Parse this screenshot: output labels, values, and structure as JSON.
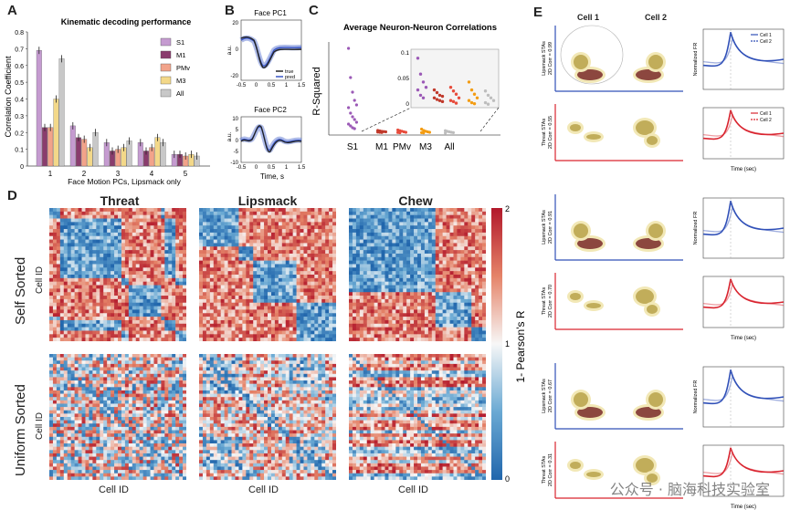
{
  "panels": {
    "A": "A",
    "B": "B",
    "C": "C",
    "D": "D",
    "E": "E"
  },
  "panelA": {
    "chart_data": {
      "type": "bar",
      "title": "Kinematic decoding performance",
      "xlabel": "Face Motion PCs, Lipsmack only",
      "ylabel": "Correlation Coefficient",
      "ylim": [
        0,
        0.8
      ],
      "yticks": [
        "0",
        "0.1",
        "0.2",
        "0.3",
        "0.4",
        "0.5",
        "0.6",
        "0.7",
        "0.8"
      ],
      "categories": [
        "1",
        "2",
        "3",
        "4",
        "5"
      ],
      "series": [
        {
          "name": "S1",
          "color": "#c59bd0",
          "values": [
            0.69,
            0.24,
            0.14,
            0.14,
            0.07
          ]
        },
        {
          "name": "M1",
          "color": "#8a3c6d",
          "values": [
            0.23,
            0.17,
            0.09,
            0.09,
            0.07
          ]
        },
        {
          "name": "PMv",
          "color": "#f2a38a",
          "values": [
            0.23,
            0.16,
            0.1,
            0.11,
            0.06
          ]
        },
        {
          "name": "M3",
          "color": "#f3d889",
          "values": [
            0.4,
            0.11,
            0.11,
            0.17,
            0.07
          ]
        },
        {
          "name": "All",
          "color": "#c8c8c8",
          "values": [
            0.64,
            0.2,
            0.15,
            0.14,
            0.06
          ]
        }
      ]
    }
  },
  "panelB": {
    "pc1": {
      "title": "Face PC1",
      "ylabel": "a.u.",
      "yticks": [
        "20",
        "0",
        "-20"
      ],
      "xticks": [
        "-0.5",
        "0",
        "0.5",
        "1",
        "1.5"
      ],
      "legend_true": "true",
      "legend_pred": "pred"
    },
    "pc2": {
      "title": "Face PC2",
      "ylabel": "a.u.",
      "yticks": [
        "10",
        "5",
        "0",
        "-5",
        "-10"
      ],
      "xticks": [
        "-0.5",
        "0",
        "0.5",
        "1",
        "1.5"
      ],
      "xlabel": "Time, s"
    }
  },
  "panelC": {
    "chart_data": {
      "type": "scatter",
      "title": "Average Neuron-Neuron Correlations",
      "ylabel": "R-Squared",
      "categories": [
        "S1",
        "M1",
        "PMv",
        "M3",
        "All"
      ],
      "colors": [
        "#9b59b6",
        "#c0392b",
        "#e74c3c",
        "#f39c12",
        "#bdbdbd"
      ],
      "inset_yticks": [
        "0.1",
        "0.05",
        "0"
      ],
      "points": [
        [
          0.93,
          0.61,
          0.45,
          0.36,
          0.31,
          0.28,
          0.22,
          0.18,
          0.15,
          0.12,
          0.1,
          0.08,
          0.06,
          0.05
        ],
        [
          0.03,
          0.025,
          0.02,
          0.018,
          0.015,
          0.012,
          0.01,
          0.008
        ],
        [
          0.035,
          0.028,
          0.022,
          0.015,
          0.01,
          0.008,
          0.005
        ],
        [
          0.045,
          0.03,
          0.022,
          0.015,
          0.01,
          0.006,
          0.004
        ],
        [
          0.028,
          0.02,
          0.015,
          0.01,
          0.006,
          0.003
        ]
      ]
    }
  },
  "panelD": {
    "columns": [
      "Threat",
      "Lipsmack",
      "Chew"
    ],
    "rows": [
      "Self Sorted",
      "Uniform Sorted"
    ],
    "ylabel": "Cell ID",
    "xlabel": "Cell ID",
    "colorbar_label": "1- Pearson's R",
    "colorbar_ticks": [
      "2",
      "1",
      "0"
    ]
  },
  "panelE": {
    "cell1": "Cell 1",
    "cell2": "Cell 2",
    "ylabel_fr": "Normalized FR",
    "xlabel_time": "Time (sec)",
    "legend": [
      "Cell 1",
      "Cell 2"
    ],
    "pairs": [
      {
        "lip": "Lipsmack STAs",
        "lip_corr": "2D Corr = 0.99",
        "thr": "Threat STAs",
        "thr_corr": "2D Corr = 0.55"
      },
      {
        "lip": "Lipsmack STAs",
        "lip_corr": "2D Corr = 0.91",
        "thr": "Threat STAs",
        "thr_corr": "2D Corr = 0.70"
      },
      {
        "lip": "Lipsmack STAs",
        "lip_corr": "2D Corr = 0.67",
        "thr": "Threat STAs",
        "thr_corr": "2D Corr = 0.31"
      }
    ]
  },
  "watermark": "公众号 · 脑海科技实验室"
}
